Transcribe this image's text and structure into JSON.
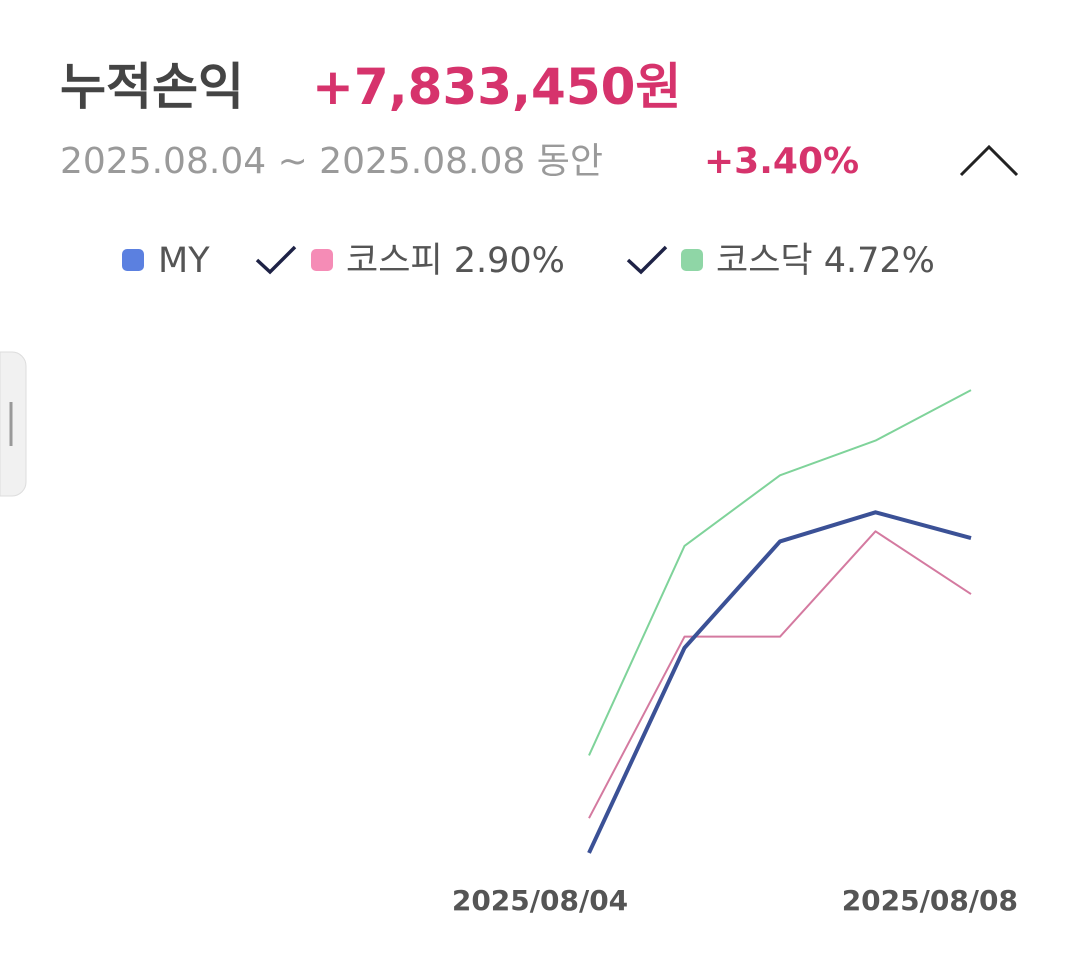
{
  "header": {
    "title": "누적손익",
    "amount": "+7,833,450원",
    "period": "2025.08.04 ~ 2025.08.08 동안",
    "rate": "+3.40%"
  },
  "chart_data": {
    "type": "line",
    "categories": [
      "2025/08/04",
      null,
      null,
      null,
      "2025/08/08"
    ],
    "series": [
      {
        "name": "MY",
        "color": "#3b5196",
        "legend_color": "#5b80e0",
        "values": [
          0.59,
          2.42,
          3.37,
          3.63,
          3.4
        ]
      },
      {
        "name": "코스피 2.90%",
        "color": "#d47aa0",
        "legend_color": "#f58cb6",
        "values": [
          0.9,
          2.52,
          2.52,
          3.46,
          2.9
        ]
      },
      {
        "name": "코스닥 4.72%",
        "color": "#7fd39a",
        "legend_color": "#8fd6a6",
        "values": [
          1.46,
          3.33,
          3.96,
          4.27,
          4.72
        ]
      }
    ],
    "ylim": [
      0.5,
      4.9
    ]
  }
}
